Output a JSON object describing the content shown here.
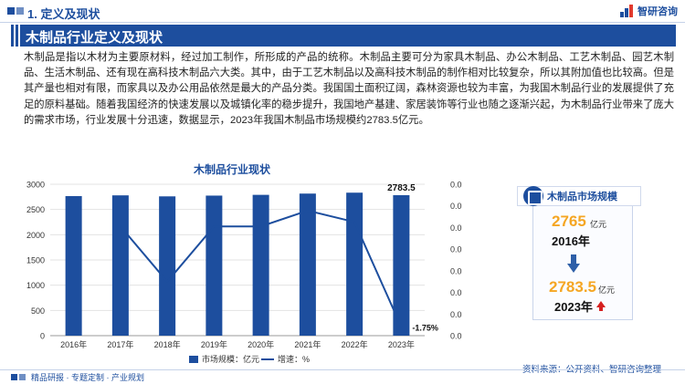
{
  "header": {
    "section_title": "1. 定义及现状",
    "brand": "智研咨询"
  },
  "banner": {
    "title": "木制品行业定义及现状"
  },
  "paragraph": "木制品是指以木材为主要原材料，经过加工制作，所形成的产品的统称。木制品主要可分为家具木制品、办公木制品、工艺木制品、园艺木制品、生活木制品、还有现在高科技木制品六大类。其中，由于工艺木制品以及高科技木制品的制作相对比较复杂，所以其附加值也比较高。但是其产量也相对有限，而家具以及办公用品依然是最大的产品分类。我国国土面积辽阔，森林资源也较为丰富，为我国木制品行业的发展提供了充足的原料基础。随着我国经济的快速发展以及城镇化率的稳步提升，我国地产基建、家居装饰等行业也随之逐渐兴起，为木制品行业带来了庞大的需求市场，行业发展十分迅速，数据显示，2023年我国木制品市场规模约2783.5亿元。",
  "chart_data": {
    "type": "bar",
    "title": "木制品行业现状",
    "categories": [
      "2016年",
      "2017年",
      "2018年",
      "2019年",
      "2020年",
      "2021年",
      "2022年",
      "2023年"
    ],
    "series": [
      {
        "name": "市场规模：亿元",
        "type": "bar",
        "axis": "left",
        "values": [
          2765,
          2780,
          2760,
          2775,
          2790,
          2815,
          2833,
          2783.5
        ]
      },
      {
        "name": "增速：%",
        "type": "line",
        "axis": "right",
        "values": [
          null,
          0.54,
          -0.72,
          0.54,
          0.54,
          0.9,
          0.64,
          -1.75
        ]
      }
    ],
    "y_left": {
      "min": 0,
      "max": 3000,
      "ticks": [
        0,
        500,
        1000,
        1500,
        2000,
        2500,
        3000
      ]
    },
    "y_right": {
      "ticks": [
        "0.0",
        "0.0",
        "0.0",
        "0.0",
        "0.0",
        "0.0",
        "0.0",
        "0.0"
      ]
    },
    "labels": {
      "last_bar": "2783.5",
      "last_growth": "-1.75%"
    },
    "legend_position": "bottom",
    "colors": {
      "bar": "#1d4e9e",
      "line": "#1d4e9e"
    }
  },
  "side_panel": {
    "title": "木制品市场规模",
    "start_value": "2765",
    "start_unit": "亿元",
    "start_year": "2016年",
    "end_value": "2783.5",
    "end_unit": "亿元",
    "end_year": "2023年"
  },
  "footer": {
    "left": "精品研报 · 专题定制 · 产业规划",
    "source": "资料来源：公开资料、智研咨询整理"
  }
}
